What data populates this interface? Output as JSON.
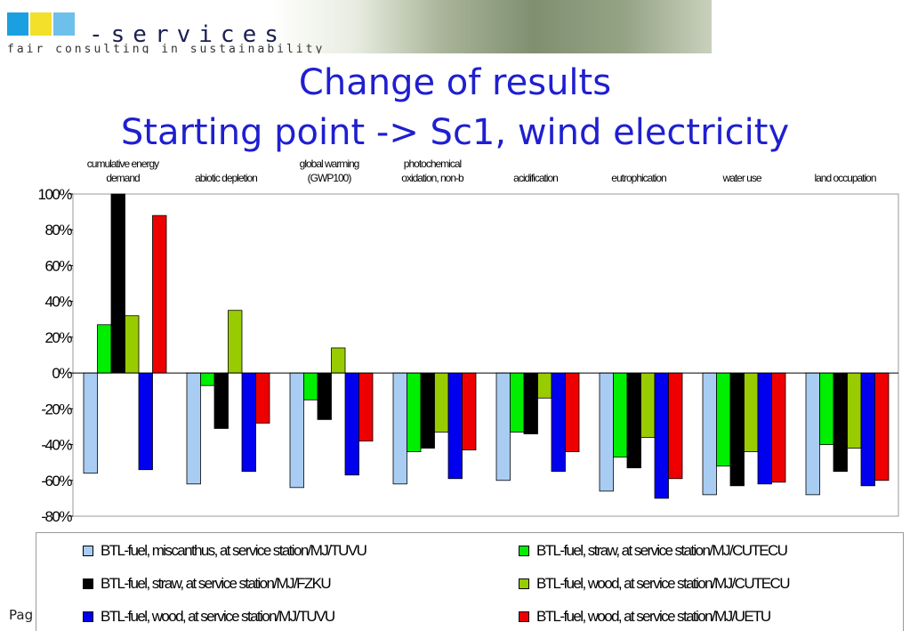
{
  "header": {
    "logo_text": "-services",
    "tagline": "fair consulting in sustainability",
    "logo_colors": [
      "#1aa0e0",
      "#f2e02a",
      "#6dc0ea"
    ]
  },
  "title": {
    "line1": "Change of results",
    "line2": "Starting point -> Sc1, wind electricity",
    "color": "#1f1fd0"
  },
  "footer": {
    "page_label": "Pag"
  },
  "chart_data": {
    "type": "bar",
    "categories": [
      [
        "cumulative energy",
        "demand"
      ],
      [
        "abiotic depletion"
      ],
      [
        "global warming",
        "(GWP100)"
      ],
      [
        "photochemical",
        "oxidation, non-b"
      ],
      [
        "acidification"
      ],
      [
        "eutrophication"
      ],
      [
        "water use"
      ],
      [
        "land occupation"
      ]
    ],
    "ylim": [
      -80,
      100
    ],
    "yticks": [
      100,
      80,
      60,
      40,
      20,
      0,
      -20,
      -40,
      -60,
      -80
    ],
    "ytick_labels": [
      "100%",
      "80%",
      "60%",
      "40%",
      "20%",
      "0%",
      "-20%",
      "-40%",
      "-60%",
      "-80%"
    ],
    "series": [
      {
        "name": "BTL-fuel, miscanthus, at service station/MJ/TUVU",
        "color": "#a9cdf2",
        "values": [
          -56,
          -62,
          -64,
          -62,
          -60,
          -66,
          -68,
          -68
        ]
      },
      {
        "name": "BTL-fuel, straw, at service station/MJ/CUTECU",
        "color": "#00ee00",
        "values": [
          27,
          -7,
          -15,
          -44,
          -33,
          -47,
          -52,
          -40
        ]
      },
      {
        "name": "BTL-fuel, straw, at service station/MJ/FZKU",
        "color": "#000000",
        "values": [
          100,
          -31,
          -26,
          -42,
          -34,
          -53,
          -63,
          -55
        ]
      },
      {
        "name": "BTL-fuel, wood, at service station/MJ/CUTECU",
        "color": "#99cc00",
        "values": [
          32,
          35,
          14,
          -33,
          -14,
          -36,
          -44,
          -42
        ]
      },
      {
        "name": "BTL-fuel, wood, at service station/MJ/TUVU",
        "color": "#0000ee",
        "values": [
          -54,
          -55,
          -57,
          -59,
          -55,
          -70,
          -62,
          -63
        ]
      },
      {
        "name": "BTL-fuel, wood, at service station/MJ/UETU",
        "color": "#ee0000",
        "values": [
          88,
          -28,
          -38,
          -43,
          -44,
          -59,
          -61,
          -60
        ]
      }
    ],
    "grid": false,
    "legend_position": "bottom"
  }
}
